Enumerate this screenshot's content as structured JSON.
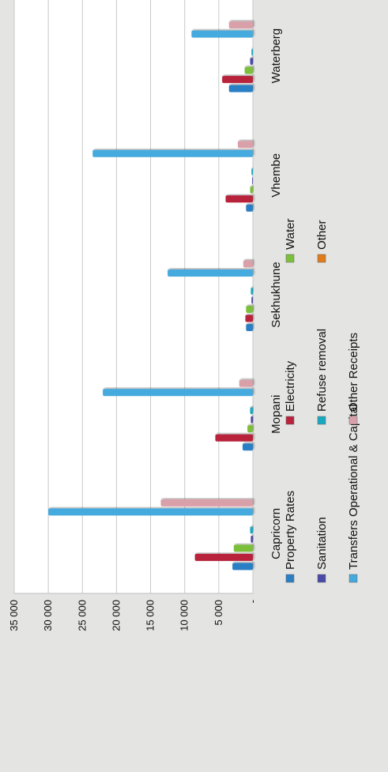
{
  "chart_data": {
    "type": "bar",
    "orientation": "rotated-90",
    "title": "",
    "xlabel": "",
    "ylabel": "",
    "ylim": [
      0,
      35000
    ],
    "y_ticks": [
      {
        "value": 0,
        "label": "-"
      },
      {
        "value": 5000,
        "label": "5 000"
      },
      {
        "value": 10000,
        "label": "10 000"
      },
      {
        "value": 15000,
        "label": "15 000"
      },
      {
        "value": 20000,
        "label": "20 000"
      },
      {
        "value": 25000,
        "label": "25 000"
      },
      {
        "value": 30000,
        "label": "30 000"
      },
      {
        "value": 35000,
        "label": "35 000"
      }
    ],
    "grid": true,
    "legend_position": "bottom",
    "categories": [
      "Capricorn",
      "Mopani",
      "Sekhukhune",
      "Vhembe",
      "Waterberg"
    ],
    "series": [
      {
        "name": "Property Rates",
        "color": "#2a7fc4",
        "values": [
          3000,
          1500,
          1000,
          1000,
          3500
        ]
      },
      {
        "name": "Electricity",
        "color": "#b8223a",
        "values": [
          8500,
          5500,
          1100,
          4000,
          4500
        ]
      },
      {
        "name": "Water",
        "color": "#7bbf3a",
        "values": [
          2800,
          800,
          1000,
          400,
          1200
        ]
      },
      {
        "name": "Sanitation",
        "color": "#4a4aa8",
        "values": [
          300,
          300,
          200,
          100,
          400
        ]
      },
      {
        "name": "Refuse removal",
        "color": "#1aa8c0",
        "values": [
          400,
          400,
          300,
          200,
          200
        ]
      },
      {
        "name": "Other",
        "color": "#e07a1a",
        "values": [
          0,
          0,
          0,
          0,
          0
        ]
      },
      {
        "name": "Transfers Operational & Capital",
        "color": "#44aadd",
        "values": [
          30000,
          22000,
          12500,
          23500,
          9000
        ]
      },
      {
        "name": "Other Receipts",
        "color": "#d9a0aa",
        "values": [
          13500,
          2000,
          1400,
          2200,
          3500
        ]
      }
    ],
    "legend_rows": [
      [
        "Property Rates",
        "Electricity",
        "Water"
      ],
      [
        "Sanitation",
        "Refuse removal",
        "Other"
      ],
      [
        "Transfers Operational & Capital",
        "Other Receipts"
      ]
    ]
  }
}
